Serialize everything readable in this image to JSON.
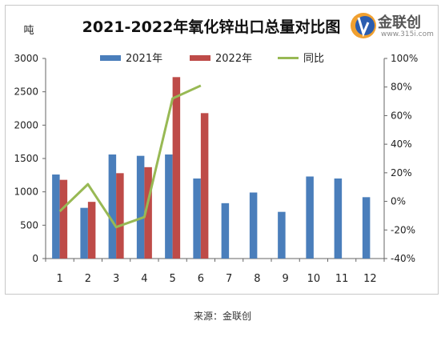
{
  "chart_data": {
    "type": "bar",
    "title": "2021-2022年氧化锌出口总量对比图",
    "ylabel_left": "吨",
    "categories": [
      "1",
      "2",
      "3",
      "4",
      "5",
      "6",
      "7",
      "8",
      "9",
      "10",
      "11",
      "12"
    ],
    "series": [
      {
        "name": "2021年",
        "type": "bar",
        "axis": "left",
        "color": "#4a7ebb",
        "values": [
          1260,
          760,
          1560,
          1540,
          1560,
          1200,
          830,
          990,
          700,
          1230,
          1200,
          920
        ]
      },
      {
        "name": "2022年",
        "type": "bar",
        "axis": "left",
        "color": "#be4b48",
        "values": [
          1180,
          850,
          1280,
          1370,
          2720,
          2180,
          null,
          null,
          null,
          null,
          null,
          null
        ]
      },
      {
        "name": "同比",
        "type": "line",
        "axis": "right",
        "color": "#98b954",
        "values": [
          -7,
          12,
          -18,
          -11,
          72,
          81,
          null,
          null,
          null,
          null,
          null,
          null
        ]
      }
    ],
    "ylim_left": [
      0,
      3000
    ],
    "yticks_left": [
      "0",
      "500",
      "1000",
      "1500",
      "2000",
      "2500",
      "3000"
    ],
    "ylim_right": [
      -40,
      100
    ],
    "yticks_right": [
      "-40%",
      "-20%",
      "0%",
      "20%",
      "40%",
      "60%",
      "80%",
      "100%"
    ],
    "legend_position": "top"
  },
  "logo": {
    "name": "金联创",
    "url": "www.315i.com"
  },
  "source": "来源：金联创"
}
